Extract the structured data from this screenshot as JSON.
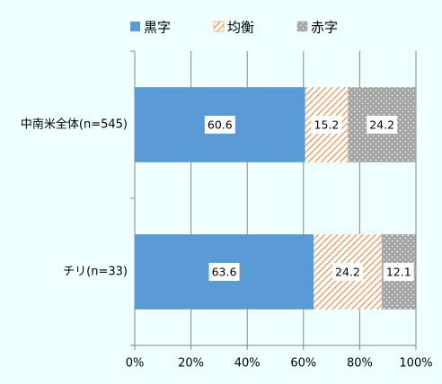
{
  "chart_data": {
    "type": "stacked-bar-horizontal",
    "categories": [
      "中南米全体(n=545)",
      "チリ(n=33)"
    ],
    "series": [
      {
        "name": "黒字",
        "color": "#5b9bd5",
        "pattern": "solid",
        "values": [
          60.6,
          63.6
        ]
      },
      {
        "name": "均衡",
        "color": "#ed7d31",
        "pattern": "hatch",
        "values": [
          15.2,
          24.2
        ]
      },
      {
        "name": "赤字",
        "color": "#a5a5a5",
        "pattern": "dots",
        "values": [
          24.2,
          12.1
        ]
      }
    ],
    "xlim": [
      0,
      100
    ],
    "xticks": [
      {
        "value": 0,
        "label": "0%"
      },
      {
        "value": 20,
        "label": "20%"
      },
      {
        "value": 40,
        "label": "40%"
      },
      {
        "value": 60,
        "label": "60%"
      },
      {
        "value": 80,
        "label": "80%"
      },
      {
        "value": 100,
        "label": "100%"
      }
    ],
    "grid": true,
    "legend": "top"
  }
}
